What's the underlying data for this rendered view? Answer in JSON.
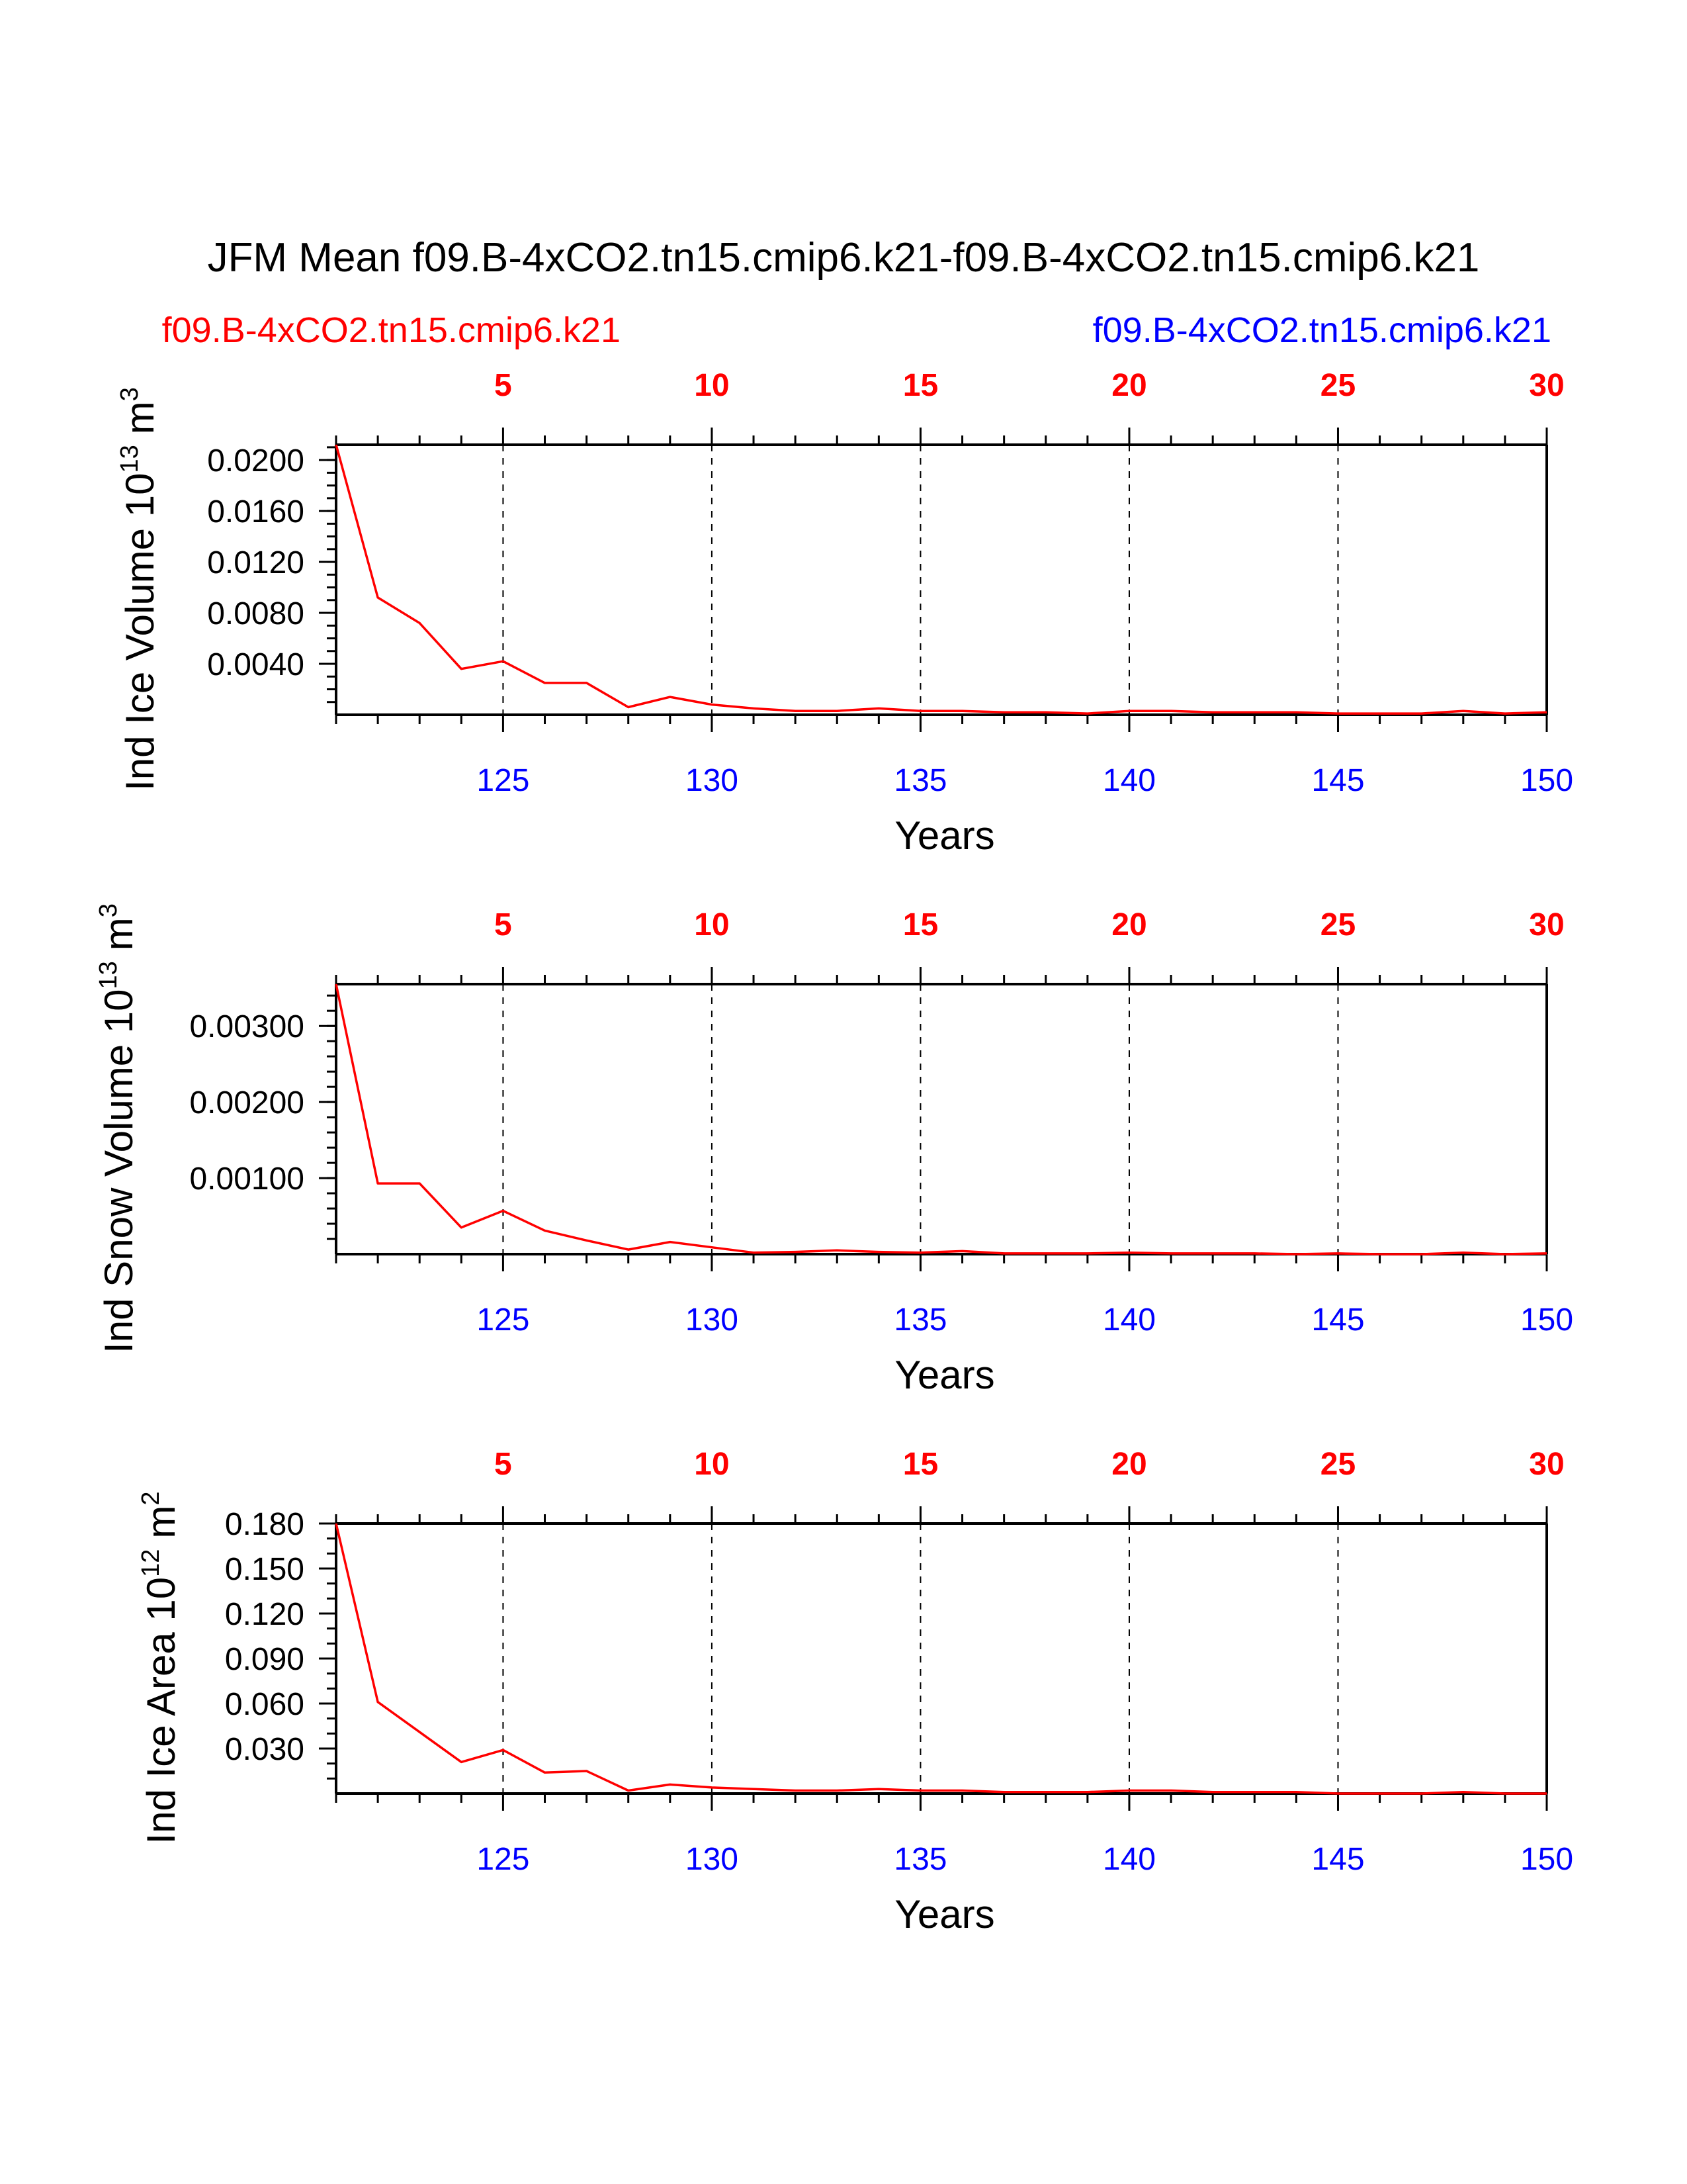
{
  "figure": {
    "title": "JFM Mean f09.B-4xCO2.tn15.cmip6.k21-f09.B-4xCO2.tn15.cmip6.k21",
    "legend_left": "f09.B-4xCO2.tn15.cmip6.k21",
    "legend_right": "f09.B-4xCO2.tn15.cmip6.k21",
    "colors": {
      "case_red": "#ff0000",
      "case_blue": "#0000ff",
      "axes": "#000000"
    }
  },
  "chart_data": [
    {
      "type": "line",
      "ylabel_main": "Ind Ice Volume 10",
      "ylabel_exp": "13",
      "ylabel_unit": "m",
      "ylabel_unit_exp": "3",
      "xlabel": "Years",
      "xlim": [
        121,
        150
      ],
      "ylim": [
        0,
        0.0212
      ],
      "yticks": [
        0.004,
        0.008,
        0.012,
        0.016,
        0.02
      ],
      "ytick_labels": [
        "0.0040",
        "0.0080",
        "0.0120",
        "0.0160",
        "0.0200"
      ],
      "yminor_step": 0.001,
      "top_ticks": [
        5,
        10,
        15,
        20,
        25,
        30
      ],
      "bottom_ticks": [
        125,
        130,
        135,
        140,
        145,
        150
      ],
      "x": [
        121,
        122,
        123,
        124,
        125,
        126,
        127,
        128,
        129,
        130,
        131,
        132,
        133,
        134,
        135,
        136,
        137,
        138,
        139,
        140,
        141,
        142,
        143,
        144,
        145,
        146,
        147,
        148,
        149,
        150
      ],
      "series": [
        {
          "name": "f09.B-4xCO2.tn15.cmip6.k21",
          "color": "#ff0000",
          "values": [
            0.0212,
            0.0092,
            0.0072,
            0.0036,
            0.0042,
            0.0025,
            0.0025,
            0.0006,
            0.0014,
            0.0008,
            0.0005,
            0.0003,
            0.0003,
            0.0005,
            0.0003,
            0.0003,
            0.0002,
            0.0002,
            0.0001,
            0.0003,
            0.0003,
            0.0002,
            0.0002,
            0.0002,
            0.0001,
            0.0001,
            0.0001,
            0.0003,
            0.0001,
            0.0002
          ]
        }
      ]
    },
    {
      "type": "line",
      "ylabel_main": "Ind Snow Volume 10",
      "ylabel_exp": "13",
      "ylabel_unit": "m",
      "ylabel_unit_exp": "3",
      "xlabel": "Years",
      "xlim": [
        121,
        150
      ],
      "ylim": [
        0,
        0.00355
      ],
      "yticks": [
        0.001,
        0.002,
        0.003
      ],
      "ytick_labels": [
        "0.00100",
        "0.00200",
        "0.00300"
      ],
      "yminor_step": 0.0002,
      "top_ticks": [
        5,
        10,
        15,
        20,
        25,
        30
      ],
      "bottom_ticks": [
        125,
        130,
        135,
        140,
        145,
        150
      ],
      "x": [
        121,
        122,
        123,
        124,
        125,
        126,
        127,
        128,
        129,
        130,
        131,
        132,
        133,
        134,
        135,
        136,
        137,
        138,
        139,
        140,
        141,
        142,
        143,
        144,
        145,
        146,
        147,
        148,
        149,
        150
      ],
      "series": [
        {
          "name": "f09.B-4xCO2.tn15.cmip6.k21",
          "color": "#ff0000",
          "values": [
            0.00355,
            0.00093,
            0.00093,
            0.00035,
            0.00057,
            0.00031,
            0.00018,
            6e-05,
            0.00016,
            9e-05,
            2e-05,
            3e-05,
            5e-05,
            3e-05,
            2e-05,
            4e-05,
            1e-05,
            1e-05,
            1e-05,
            2e-05,
            1e-05,
            1e-05,
            1e-05,
            0.0,
            1e-05,
            0.0,
            0.0,
            2e-05,
            0.0,
            1e-05
          ]
        }
      ]
    },
    {
      "type": "line",
      "ylabel_main": "Ind Ice Area 10",
      "ylabel_exp": "12",
      "ylabel_unit": "m",
      "ylabel_unit_exp": "2",
      "xlabel": "Years",
      "xlim": [
        121,
        150
      ],
      "ylim": [
        0,
        0.18
      ],
      "yticks": [
        0.03,
        0.06,
        0.09,
        0.12,
        0.15,
        0.18
      ],
      "ytick_labels": [
        "0.030",
        "0.060",
        "0.090",
        "0.120",
        "0.150",
        "0.180"
      ],
      "yminor_step": 0.01,
      "top_ticks": [
        5,
        10,
        15,
        20,
        25,
        30
      ],
      "bottom_ticks": [
        125,
        130,
        135,
        140,
        145,
        150
      ],
      "x": [
        121,
        122,
        123,
        124,
        125,
        126,
        127,
        128,
        129,
        130,
        131,
        132,
        133,
        134,
        135,
        136,
        137,
        138,
        139,
        140,
        141,
        142,
        143,
        144,
        145,
        146,
        147,
        148,
        149,
        150
      ],
      "series": [
        {
          "name": "f09.B-4xCO2.tn15.cmip6.k21",
          "color": "#ff0000",
          "values": [
            0.18,
            0.061,
            0.041,
            0.021,
            0.029,
            0.014,
            0.015,
            0.002,
            0.006,
            0.004,
            0.003,
            0.002,
            0.002,
            0.003,
            0.002,
            0.002,
            0.001,
            0.001,
            0.001,
            0.002,
            0.002,
            0.001,
            0.001,
            0.001,
            0.0,
            0.0,
            0.0,
            0.001,
            0.0,
            0.0
          ]
        }
      ]
    }
  ]
}
